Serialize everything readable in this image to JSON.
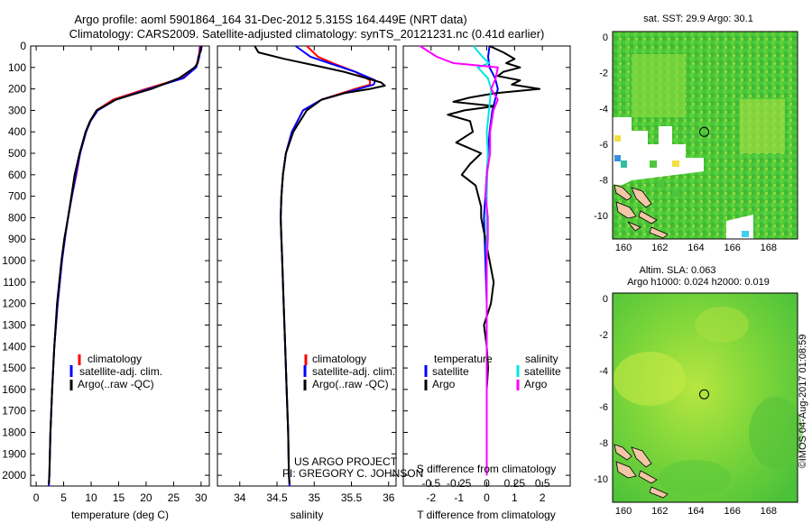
{
  "title": {
    "line1": "Argo profile: aoml 5901864_164 31-Dec-2012 5.315S 164.449E (NRT data)",
    "line2": "Climatology: CARS2009. Satellite-adjusted climatology: synTS_20121231.nc (0.41d earlier)"
  },
  "colors": {
    "clim": "#ff0000",
    "sat": "#0000ff",
    "argo": "#000000",
    "sal_sat": "#00e5e5",
    "sal_argo": "#ff00ff"
  },
  "depth_axis": {
    "range": [
      0,
      2050
    ],
    "ticks": [
      0,
      100,
      200,
      300,
      400,
      500,
      600,
      700,
      800,
      900,
      1000,
      1100,
      1200,
      1300,
      1400,
      1500,
      1600,
      1700,
      1800,
      1900,
      2000
    ]
  },
  "legend": {
    "climatology": "climatology",
    "satellite": "satellite-adj. clim.",
    "argo": "Argo(..raw -QC)"
  },
  "diff_legend": {
    "temp_header": "temperature",
    "sal_header": "salinity",
    "satellite": "satellite",
    "argo": "Argo"
  },
  "credit": {
    "line1": "US ARGO PROJECT",
    "line2": "PI: GREGORY C. JOHNSON"
  },
  "maps": {
    "sst": {
      "title": "sat. SST: 29.9 Argo: 30.1"
    },
    "sla": {
      "title1": "Altim. SLA: 0.063",
      "title2": "Argo h1000: 0.024 h2000: 0.019"
    },
    "x_ticks": [
      "160",
      "162",
      "164",
      "166",
      "168"
    ],
    "y_ticks": [
      "0",
      "-2",
      "-4",
      "-6",
      "-8",
      "-10"
    ],
    "float_position": {
      "lon": 164.449,
      "lat": -5.315
    }
  },
  "stamp": "©IMOS 04-Aug-2017 01:08:59",
  "chart_data": [
    {
      "type": "line",
      "name": "temperature",
      "xlabel": "temperature (deg C)",
      "xlim": [
        -1,
        31.5
      ],
      "xticks": [
        0,
        5,
        10,
        15,
        20,
        25,
        30
      ],
      "series": [
        {
          "name": "climatology",
          "depth": [
            0,
            50,
            100,
            150,
            200,
            250,
            300,
            350,
            400,
            500,
            600,
            700,
            800,
            900,
            1000,
            1200,
            1400,
            1600,
            1800,
            2000,
            2050
          ],
          "values": [
            29.8,
            29.6,
            29,
            26.5,
            20,
            14,
            11,
            9.8,
            9,
            8,
            7.3,
            6.5,
            5.8,
            5.2,
            4.7,
            3.9,
            3.3,
            2.9,
            2.6,
            2.4,
            2.3
          ]
        },
        {
          "name": "satellite-adj. clim.",
          "depth": [
            0,
            50,
            100,
            150,
            200,
            250,
            300,
            350,
            400,
            500,
            600,
            700,
            800,
            900,
            1000,
            1200,
            1400,
            1600,
            1800,
            2000,
            2050
          ],
          "values": [
            29.9,
            29.7,
            29.1,
            26.8,
            20.5,
            14.5,
            11.2,
            9.9,
            9.1,
            8,
            7.2,
            6.5,
            5.8,
            5.2,
            4.7,
            3.9,
            3.3,
            2.9,
            2.6,
            2.4,
            2.3
          ]
        },
        {
          "name": "Argo",
          "depth": [
            0,
            20,
            50,
            80,
            100,
            150,
            200,
            230,
            250,
            300,
            350,
            400,
            500,
            600,
            700,
            800,
            900,
            1000,
            1200,
            1400,
            1600,
            1800,
            2000,
            2040
          ],
          "values": [
            30.1,
            30.0,
            29.5,
            29.4,
            28.8,
            26,
            21,
            17,
            14.5,
            11,
            9.8,
            9,
            7.9,
            7,
            6.4,
            5.8,
            5.1,
            4.6,
            3.8,
            3.3,
            2.9,
            2.6,
            2.4,
            2.3
          ]
        }
      ]
    },
    {
      "type": "line",
      "name": "salinity",
      "xlabel": "salinity",
      "xlim": [
        33.7,
        36.1
      ],
      "xticks": [
        34,
        34.5,
        35,
        35.5,
        36
      ],
      "xticklabels": [
        "34",
        "34.5",
        "35",
        "35.5",
        "36"
      ],
      "series": [
        {
          "name": "climatology",
          "depth": [
            0,
            50,
            80,
            120,
            160,
            180,
            200,
            250,
            300,
            400,
            500,
            600,
            700,
            800,
            900,
            1000,
            1200,
            1400,
            1600,
            1800,
            2000,
            2050
          ],
          "values": [
            34.9,
            35.05,
            35.25,
            35.55,
            35.75,
            35.75,
            35.55,
            35.1,
            34.85,
            34.7,
            34.62,
            34.58,
            34.56,
            34.55,
            34.56,
            34.57,
            34.59,
            34.61,
            34.63,
            34.65,
            34.66,
            34.67
          ]
        },
        {
          "name": "satellite-adj. clim.",
          "depth": [
            0,
            50,
            80,
            120,
            160,
            180,
            200,
            250,
            300,
            400,
            500,
            600,
            700,
            800,
            900,
            1000,
            1200,
            1400,
            1600,
            1800,
            2000,
            2050
          ],
          "values": [
            34.75,
            34.95,
            35.2,
            35.55,
            35.82,
            35.8,
            35.6,
            35.1,
            34.85,
            34.7,
            34.62,
            34.58,
            34.56,
            34.55,
            34.56,
            34.57,
            34.59,
            34.61,
            34.63,
            34.65,
            34.66,
            34.67
          ]
        },
        {
          "name": "Argo",
          "depth": [
            0,
            30,
            60,
            90,
            120,
            150,
            170,
            185,
            200,
            220,
            250,
            300,
            400,
            500,
            600,
            700,
            800,
            900,
            1000,
            1200,
            1400,
            1600,
            1800,
            2000,
            2040
          ],
          "values": [
            34.2,
            34.25,
            34.6,
            35.0,
            35.4,
            35.7,
            35.9,
            35.95,
            35.75,
            35.4,
            35.1,
            34.9,
            34.72,
            34.62,
            34.58,
            34.56,
            34.55,
            34.56,
            34.57,
            34.59,
            34.61,
            34.63,
            34.65,
            34.66,
            34.67
          ]
        }
      ]
    },
    {
      "type": "line",
      "name": "difference from climatology",
      "xlabel_bottom": "T difference from climatology",
      "xlabel_top": "S difference from climatology",
      "xlim": [
        -3,
        3
      ],
      "xticks": [
        -2,
        -1,
        0,
        1,
        2
      ],
      "xticklabels": [
        "-2",
        "-1",
        "0",
        "1",
        "2"
      ],
      "top_ticks": [
        -0.5,
        -0.25,
        0,
        0.25,
        0.5
      ],
      "top_ticklabels": [
        "-0.5",
        "-0.25",
        "0",
        "0.25",
        "0.5"
      ],
      "series": [
        {
          "name": "temperature satellite",
          "depth": [
            0,
            50,
            100,
            150,
            200,
            300,
            400,
            500,
            600,
            700,
            800,
            1000,
            1200,
            1400,
            1600,
            1800,
            2000
          ],
          "values": [
            0.1,
            0.05,
            0.1,
            0.3,
            0.4,
            0.2,
            0.1,
            0.05,
            0.0,
            -0.05,
            -0.1,
            -0.05,
            0,
            0,
            0,
            0,
            0
          ]
        },
        {
          "name": "temperature Argo",
          "depth": [
            0,
            30,
            60,
            80,
            100,
            120,
            140,
            160,
            180,
            200,
            220,
            240,
            260,
            280,
            300,
            320,
            350,
            400,
            450,
            500,
            550,
            600,
            650,
            700,
            750,
            800,
            900,
            1000,
            1100,
            1200,
            1300,
            1400,
            1500,
            1600,
            1700,
            1800,
            1900,
            2000
          ],
          "values": [
            0.1,
            0.6,
            1.0,
            0.7,
            1.2,
            0.6,
            0.4,
            1.2,
            0.9,
            1.9,
            0.3,
            -0.6,
            -1.2,
            0.3,
            -0.8,
            -1.4,
            -0.6,
            -0.5,
            -1.1,
            -0.2,
            -0.6,
            -0.9,
            -0.4,
            -0.3,
            -0.2,
            -0.2,
            -0.05,
            0.1,
            0.25,
            0.15,
            -0.1,
            0.0,
            0.05,
            0.0,
            0.0,
            0.0,
            0.0,
            0.0
          ]
        },
        {
          "name": "salinity satellite",
          "depth": [
            0,
            50,
            80,
            100,
            150,
            200,
            300,
            400,
            500,
            700,
            1000,
            1500,
            2000
          ],
          "values": [
            -0.12,
            -0.04,
            0.02,
            -0.08,
            0.01,
            0.04,
            0.02,
            0.0,
            0.01,
            0.0,
            0.0,
            0.0,
            0.0
          ]
        },
        {
          "name": "salinity Argo",
          "depth": [
            0,
            50,
            80,
            100,
            150,
            200,
            250,
            300,
            400,
            500,
            600,
            700,
            800,
            900,
            1000,
            1200,
            1400,
            1600,
            1800,
            2000
          ],
          "values": [
            -0.6,
            -0.45,
            -0.3,
            0.1,
            0.08,
            0.04,
            0.1,
            0.06,
            0.03,
            0.03,
            0.0,
            -0.01,
            0.01,
            0.01,
            0.0,
            0.0,
            0.0,
            0.0,
            0.0,
            0.0
          ]
        }
      ]
    },
    {
      "type": "heatmap",
      "name": "sat. SST map",
      "xlim": [
        159.4,
        169.6
      ],
      "ylim": [
        -11.3,
        0.3
      ],
      "xticks": [
        160,
        162,
        164,
        166,
        168
      ],
      "yticks": [
        0,
        -2,
        -4,
        -6,
        -8,
        -10
      ],
      "marker": {
        "lon": 164.449,
        "lat": -5.315
      }
    },
    {
      "type": "heatmap",
      "name": "Altim. SLA map",
      "xlim": [
        159.4,
        169.6
      ],
      "ylim": [
        -11.3,
        0.3
      ],
      "xticks": [
        160,
        162,
        164,
        166,
        168
      ],
      "yticks": [
        0,
        -2,
        -4,
        -6,
        -8,
        -10
      ],
      "marker": {
        "lon": 164.449,
        "lat": -5.315
      }
    }
  ]
}
